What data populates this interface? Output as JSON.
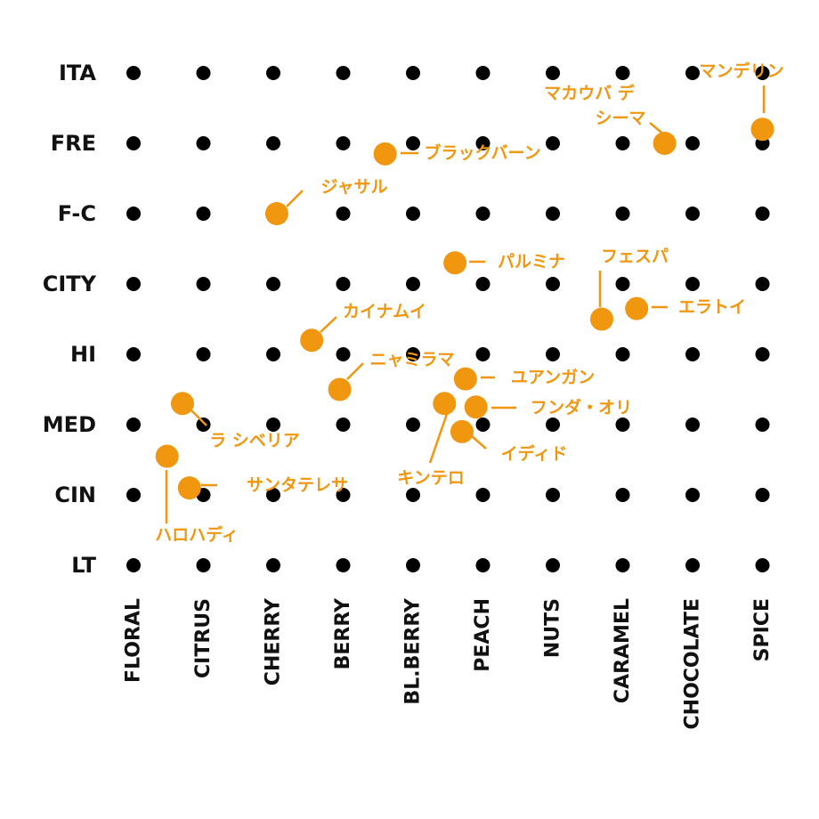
{
  "chart_data": {
    "type": "scatter",
    "title": "",
    "xlabel": "",
    "ylabel": "",
    "x_categories": [
      "FLORAL",
      "CITRUS",
      "CHERRY",
      "BERRY",
      "BL.BERRY",
      "PEACH",
      "NUTS",
      "CARAMEL",
      "CHOCOLATE",
      "SPICE"
    ],
    "y_categories": [
      "ITA",
      "FRE",
      "F-C",
      "CITY",
      "HI",
      "MED",
      "CIN",
      "LT"
    ],
    "grid_dot_color": "#000000",
    "accent_color": "#f0960f",
    "points": [
      {
        "label": "マンデリン",
        "x": 9.0,
        "y": 0.8
      },
      {
        "label": [
          "マカウバ デ",
          "シーマ"
        ],
        "x": 7.6,
        "y": 1.0
      },
      {
        "label": "ブラックバーン",
        "x": 3.6,
        "y": 1.15
      },
      {
        "label": "ジャサル",
        "x": 2.05,
        "y": 2.0
      },
      {
        "label": "パルミナ",
        "x": 4.6,
        "y": 2.7
      },
      {
        "label": "フェスパ",
        "x": 6.7,
        "y": 3.5
      },
      {
        "label": "エラトイ",
        "x": 7.2,
        "y": 3.35
      },
      {
        "label": "カイナムイ",
        "x": 2.55,
        "y": 3.8
      },
      {
        "label": "ニャミラマ",
        "x": 2.95,
        "y": 4.5
      },
      {
        "label": "ユアンガン",
        "x": 4.75,
        "y": 4.35
      },
      {
        "label": "フンダ・オリ",
        "x": 4.9,
        "y": 4.75
      },
      {
        "label": "キンテロ",
        "x": 4.45,
        "y": 4.7
      },
      {
        "label": "イディド",
        "x": 4.7,
        "y": 5.1
      },
      {
        "label": "ラ シベリア",
        "x": 0.7,
        "y": 4.7
      },
      {
        "label": "ハロハディ",
        "x": 0.48,
        "y": 5.45
      },
      {
        "label": "サンタテレサ",
        "x": 0.8,
        "y": 5.9
      }
    ]
  }
}
